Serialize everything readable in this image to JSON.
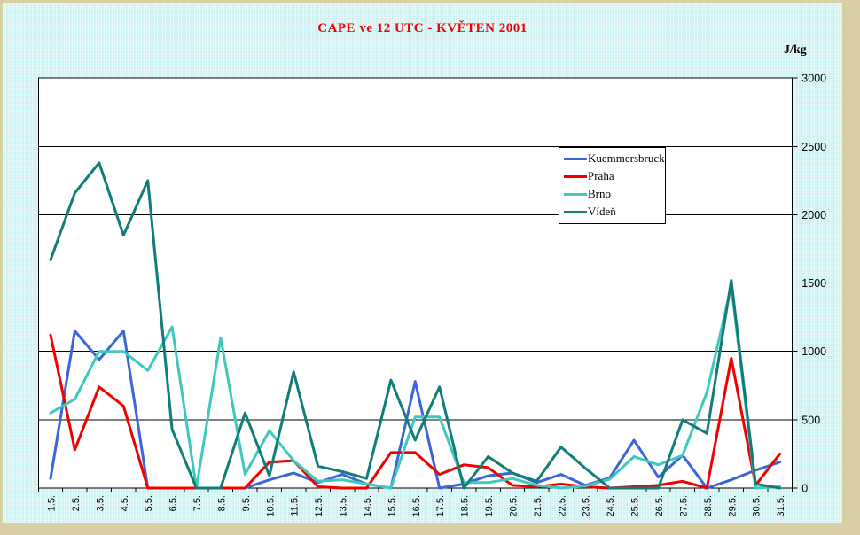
{
  "title": "CAPE ve 12 UTC - KVĚTEN 2001",
  "unit_label": "J/kg",
  "legend": {
    "position": "inside-right-upper",
    "items": [
      "Kuemmersbruck",
      "Praha",
      "Brno",
      "Vídeň"
    ]
  },
  "colors": {
    "title": "#EE0000",
    "background": "#CCFFFF",
    "matte": "#D8D0A4",
    "plot_background": "#FFFFFF",
    "gridline": "#000000",
    "series": {
      "Kuemmersbruck": "#3B66D9",
      "Praha": "#F20000",
      "Brno": "#40C8BC",
      "Vídeň": "#117C78"
    }
  },
  "chart_data": {
    "type": "line",
    "title": "CAPE ve 12 UTC - KVĚTEN 2001",
    "ylabel": "J/kg",
    "xlabel": "",
    "ylim": [
      0,
      3000
    ],
    "yticks": [
      0,
      500,
      1000,
      1500,
      2000,
      2500,
      3000
    ],
    "grid": "horizontal",
    "legend_position": "inside-top-right",
    "categories": [
      "1.5.",
      "2.5.",
      "3.5.",
      "4.5.",
      "5.5.",
      "6.5.",
      "7.5.",
      "8.5.",
      "9.5.",
      "10.5.",
      "11.5.",
      "12.5.",
      "13.5.",
      "14.5.",
      "15.5.",
      "16.5.",
      "17.5.",
      "18.5.",
      "19.5.",
      "20.5.",
      "21.5.",
      "22.5.",
      "23.5.",
      "24.5.",
      "25.5.",
      "26.5.",
      "27.5.",
      "28.5.",
      "29.5.",
      "30.5.",
      "31.5."
    ],
    "series": [
      {
        "name": "Kuemmersbruck",
        "color": "#3B66D9",
        "values": [
          70,
          1150,
          940,
          1150,
          0,
          0,
          0,
          0,
          0,
          60,
          110,
          40,
          100,
          30,
          0,
          780,
          0,
          30,
          90,
          110,
          40,
          100,
          20,
          75,
          350,
          80,
          240,
          0,
          60,
          130,
          190
        ]
      },
      {
        "name": "Praha",
        "color": "#F20000",
        "values": [
          1120,
          280,
          740,
          600,
          0,
          0,
          0,
          0,
          0,
          190,
          200,
          10,
          0,
          0,
          260,
          260,
          100,
          170,
          150,
          20,
          10,
          30,
          10,
          0,
          10,
          20,
          50,
          0,
          950,
          20,
          250
        ]
      },
      {
        "name": "Brno",
        "color": "#40C8BC",
        "values": [
          550,
          650,
          1000,
          1000,
          860,
          1180,
          0,
          1100,
          100,
          420,
          200,
          50,
          60,
          30,
          0,
          520,
          520,
          40,
          40,
          70,
          20,
          0,
          15,
          65,
          230,
          170,
          240,
          700,
          1480,
          0,
          10
        ]
      },
      {
        "name": "Vídeň",
        "color": "#117C78",
        "values": [
          1670,
          2160,
          2380,
          1850,
          2250,
          430,
          0,
          0,
          550,
          90,
          850,
          160,
          120,
          70,
          790,
          350,
          740,
          0,
          230,
          110,
          50,
          300,
          145,
          0,
          0,
          0,
          500,
          400,
          1520,
          30,
          0
        ]
      }
    ]
  }
}
